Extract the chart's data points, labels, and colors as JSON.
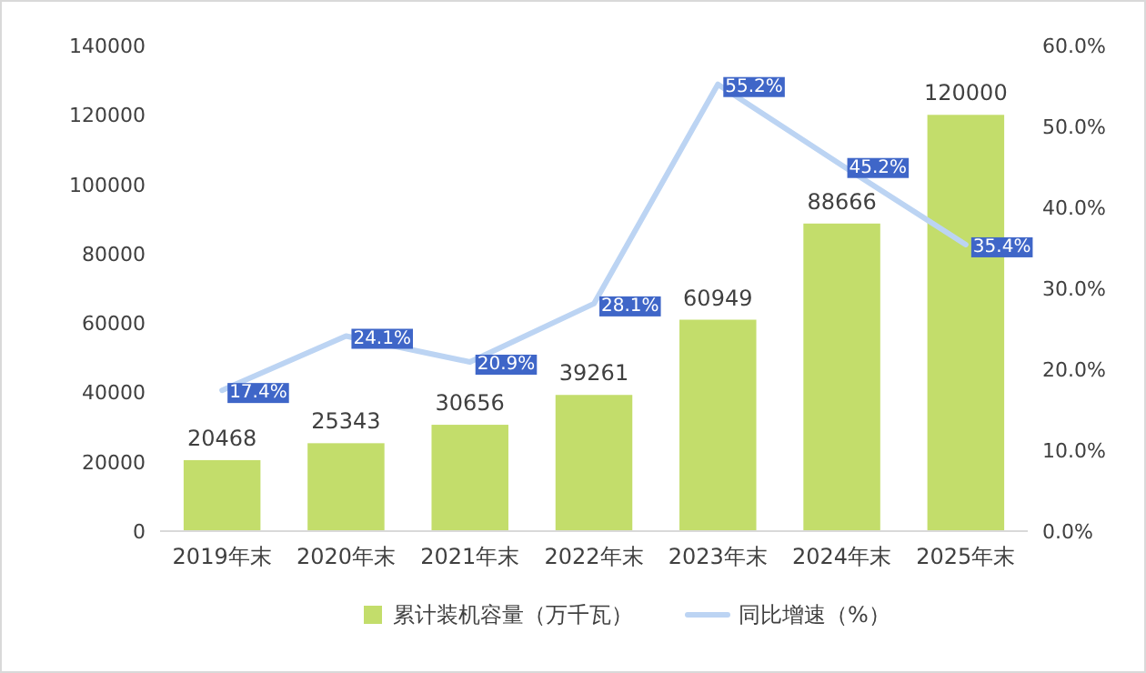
{
  "chart_data": {
    "type": "bar",
    "categories": [
      "2019年末",
      "2020年末",
      "2021年末",
      "2022年末",
      "2023年末",
      "2024年末",
      "2025年末"
    ],
    "series": [
      {
        "name": "累计装机容量（万千瓦）",
        "color": "#c3dd6b",
        "values": [
          20468,
          25343,
          30656,
          39261,
          60949,
          88666,
          120000
        ],
        "value_labels": [
          "20468",
          "25343",
          "30656",
          "39261",
          "60949",
          "88666",
          "120000"
        ]
      },
      {
        "name": "同比增速（%）",
        "type": "line",
        "axis": "y2",
        "color": "#bcd4f3",
        "values": [
          17.4,
          24.1,
          20.9,
          28.1,
          55.2,
          45.2,
          35.4
        ],
        "value_labels": [
          "17.4%",
          "24.1%",
          "20.9%",
          "28.1%",
          "55.2%",
          "45.2%",
          "35.4%"
        ]
      }
    ],
    "ylim": [
      0,
      140000
    ],
    "yticks": [
      0,
      20000,
      40000,
      60000,
      80000,
      100000,
      120000,
      140000
    ],
    "y2lim": [
      0,
      60
    ],
    "y2ticks": [
      {
        "value": 0,
        "label": "0.0%"
      },
      {
        "value": 10,
        "label": "10.0%"
      },
      {
        "value": 20,
        "label": "20.0%"
      },
      {
        "value": 30,
        "label": "30.0%"
      },
      {
        "value": 40,
        "label": "40.0%"
      },
      {
        "value": 50,
        "label": "50.0%"
      },
      {
        "value": 60,
        "label": "60.0%"
      }
    ],
    "legend": "bottom",
    "grid": false,
    "line_style": "solid"
  }
}
